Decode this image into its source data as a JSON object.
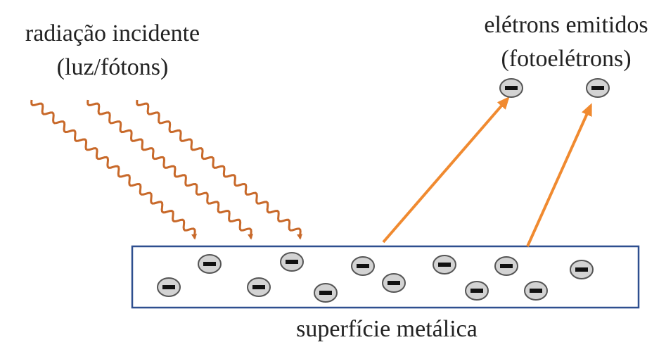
{
  "incident_label": {
    "line1": "radiação incidente",
    "line2": "(luz/fótons)"
  },
  "emitted_label": {
    "line1": "elétrons emitidos",
    "line2": "(fotoelétrons)"
  },
  "surface_label": "superfície metálica"
}
